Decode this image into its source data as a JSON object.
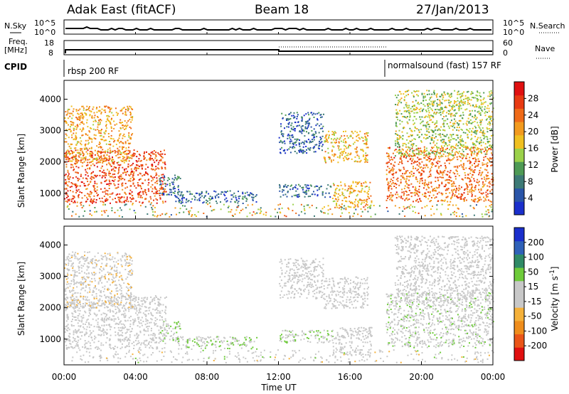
{
  "header": {
    "title": "Adak East (fitACF)",
    "beam": "Beam 18",
    "date": "27/Jan/2013"
  },
  "nsky_panel": {
    "left_label": "N.Sky",
    "right_label": "N.Search",
    "tick_top": "10^5",
    "tick_bottom": "10^0"
  },
  "freq_panel": {
    "left_label_1": "Freq.",
    "left_label_2": "[MHz]",
    "left_tick_top": "18",
    "left_tick_bottom": "8",
    "right_label": "Nave",
    "right_tick_top": "60",
    "right_tick_bottom": "0"
  },
  "cpid_panel": {
    "label": "CPID",
    "program_1": "rbsp 200 RF",
    "program_2": "normalsound (fast) 157 RF",
    "switch_time": "18:00"
  },
  "colors": {
    "power_scale": [
      "#1a2fcc",
      "#2a55a8",
      "#3d7a76",
      "#4e9a55",
      "#9bd14a",
      "#f0c020",
      "#f29a1e",
      "#ef6a18",
      "#e83a12",
      "#e01010"
    ],
    "velocity_scale": [
      "#1a2fcc",
      "#2f61b8",
      "#2f8a66",
      "#6ecb3a",
      "#c8c8c8",
      "#c8c8c8",
      "#f5b13a",
      "#ef8d1c",
      "#ea5518",
      "#e01010"
    ]
  },
  "chart_data": [
    {
      "type": "heatmap",
      "title": "Power",
      "xlabel": "Time UT",
      "ylabel": "Slant Range [km]",
      "x_ticks": [
        "00:00",
        "04:00",
        "08:00",
        "12:00",
        "16:00",
        "20:00",
        "00:00"
      ],
      "y_ticks": [
        "1000",
        "2000",
        "3000",
        "4000"
      ],
      "xlim": [
        0,
        24
      ],
      "ylim": [
        180,
        4600
      ],
      "colorbar": {
        "label": "Power [dB]",
        "ticks": [
          "4",
          "8",
          "12",
          "16",
          "20",
          "24",
          "28"
        ],
        "range": [
          0,
          32
        ]
      },
      "regions": [
        {
          "t": [
            0.0,
            5.7
          ],
          "r": [
            700,
            2400
          ],
          "level": 26
        },
        {
          "t": [
            0.0,
            3.8
          ],
          "r": [
            2000,
            3800
          ],
          "level": 20
        },
        {
          "t": [
            5.3,
            6.5
          ],
          "r": [
            950,
            1600
          ],
          "level": 7
        },
        {
          "t": [
            6.2,
            10.8
          ],
          "r": [
            700,
            1100
          ],
          "level": 6
        },
        {
          "t": [
            12.0,
            14.5
          ],
          "r": [
            2300,
            3600
          ],
          "level": 6
        },
        {
          "t": [
            14.5,
            17.0
          ],
          "r": [
            2000,
            3000
          ],
          "level": 19
        },
        {
          "t": [
            12.0,
            15.0
          ],
          "r": [
            900,
            1300
          ],
          "level": 6
        },
        {
          "t": [
            15.0,
            17.2
          ],
          "r": [
            500,
            1400
          ],
          "level": 20
        },
        {
          "t": [
            18.0,
            24.0
          ],
          "r": [
            750,
            2500
          ],
          "level": 24
        },
        {
          "t": [
            18.5,
            24.0
          ],
          "r": [
            2200,
            4300
          ],
          "level": 15
        }
      ]
    },
    {
      "type": "heatmap",
      "title": "Velocity",
      "xlabel": "Time UT",
      "ylabel": "Slant Range [km]",
      "x_ticks": [
        "00:00",
        "04:00",
        "08:00",
        "12:00",
        "16:00",
        "20:00",
        "00:00"
      ],
      "y_ticks": [
        "1000",
        "2000",
        "3000",
        "4000"
      ],
      "xlim": [
        0,
        24
      ],
      "ylim": [
        180,
        4600
      ],
      "colorbar": {
        "label": "Velocity [m s^-1]",
        "ticks": [
          "200",
          "100",
          "50",
          "15",
          "-15",
          "-50",
          "-100",
          "-200"
        ],
        "range": [
          -250,
          250
        ]
      },
      "regions": [
        {
          "t": [
            0.0,
            5.7
          ],
          "r": [
            700,
            2400
          ],
          "level": 0
        },
        {
          "t": [
            0.0,
            3.8
          ],
          "r": [
            2000,
            3800
          ],
          "level": -30
        },
        {
          "t": [
            5.3,
            6.5
          ],
          "r": [
            950,
            1600
          ],
          "level": 40
        },
        {
          "t": [
            6.2,
            10.8
          ],
          "r": [
            700,
            1100
          ],
          "level": 45
        },
        {
          "t": [
            12.0,
            14.5
          ],
          "r": [
            2300,
            3600
          ],
          "level": 0
        },
        {
          "t": [
            14.5,
            17.0
          ],
          "r": [
            2000,
            3000
          ],
          "level": 0
        },
        {
          "t": [
            12.0,
            15.0
          ],
          "r": [
            900,
            1300
          ],
          "level": 45
        },
        {
          "t": [
            15.0,
            17.2
          ],
          "r": [
            500,
            1400
          ],
          "level": 0
        },
        {
          "t": [
            18.0,
            24.0
          ],
          "r": [
            750,
            2500
          ],
          "level": 30
        },
        {
          "t": [
            18.5,
            24.0
          ],
          "r": [
            2200,
            4300
          ],
          "level": 20
        }
      ]
    }
  ]
}
